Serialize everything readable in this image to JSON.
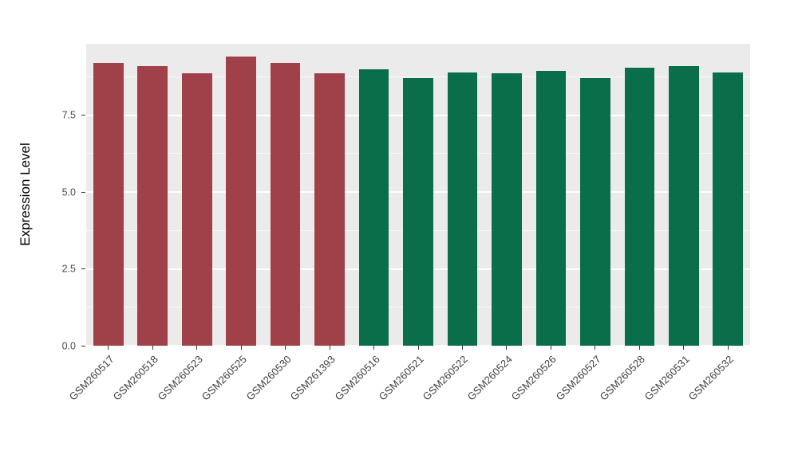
{
  "chart_data": {
    "type": "bar",
    "title": "",
    "xlabel": "",
    "ylabel": "Expression Level",
    "ylim": [
      0,
      9.82
    ],
    "grid": true,
    "legend": false,
    "panel_background": "#EBEBEB",
    "grid_color": "#FFFFFF",
    "axis_tick_color": "#333333",
    "tick_label_color": "#4D4D4D",
    "yticks": [
      {
        "label": "0.0",
        "value": 0
      },
      {
        "label": "2.5",
        "value": 2.5
      },
      {
        "label": "5.0",
        "value": 5
      },
      {
        "label": "7.5",
        "value": 7.5
      }
    ],
    "yticks_minor": [
      1.25,
      3.75,
      6.25,
      8.75
    ],
    "categories": [
      "GSM260517",
      "GSM260518",
      "GSM260523",
      "GSM260525",
      "GSM260530",
      "GSM261393",
      "GSM260516",
      "GSM260521",
      "GSM260522",
      "GSM260524",
      "GSM260526",
      "GSM260527",
      "GSM260528",
      "GSM260531",
      "GSM260532"
    ],
    "values": [
      9.2,
      9.1,
      8.85,
      9.4,
      9.2,
      8.85,
      9.0,
      8.7,
      8.9,
      8.85,
      8.95,
      8.7,
      9.05,
      9.1,
      8.9
    ],
    "group_colors": {
      "left_group": "#A04049",
      "right_group": "#096E49"
    },
    "bar_colors": [
      "#A04049",
      "#A04049",
      "#A04049",
      "#A04049",
      "#A04049",
      "#A04049",
      "#096E49",
      "#096E49",
      "#096E49",
      "#096E49",
      "#096E49",
      "#096E49",
      "#096E49",
      "#096E49",
      "#096E49"
    ]
  }
}
